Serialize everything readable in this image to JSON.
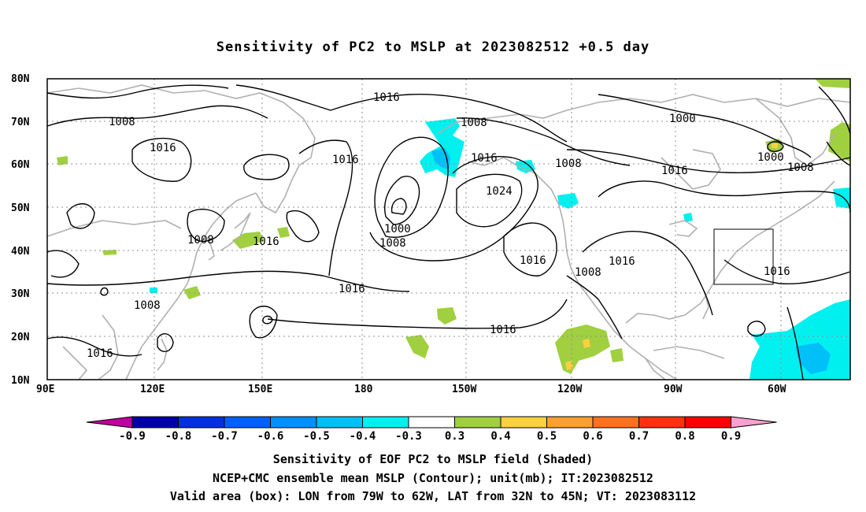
{
  "title": "Sensitivity of PC2 to MSLP at 2023082512 +0.5 day",
  "lat_labels": [
    "80N",
    "70N",
    "60N",
    "50N",
    "40N",
    "30N",
    "20N",
    "10N"
  ],
  "lon_labels": [
    "90E",
    "120E",
    "150E",
    "180",
    "150W",
    "120W",
    "90W",
    "60W"
  ],
  "contour_labels": {
    "c1016_a": "1016",
    "c1008_a": "1008",
    "c1016_b": "1016",
    "c1016_c": "1016",
    "c1008_b": "1008",
    "c1016_d": "1016",
    "c1024": "1024",
    "c1000_a": "1000",
    "c1008_c": "1008",
    "c1016_e": "1016",
    "c1016_f": "1016",
    "c1008_d": "1008",
    "c1016_g": "1016",
    "c1008_e": "1008",
    "c1000_b": "1000",
    "c1000_c": "1000",
    "c1008_f": "1008",
    "c1016_h": "1016",
    "c1016_i": "1016",
    "c1016_j": "1016",
    "c1008_g": "1008",
    "c1008_h": "1008",
    "c1016_k": "1016"
  },
  "colorbar": {
    "labels": [
      "-0.9",
      "-0.8",
      "-0.7",
      "-0.6",
      "-0.5",
      "-0.4",
      "-0.3",
      "0.3",
      "0.4",
      "0.5",
      "0.6",
      "0.7",
      "0.8",
      "0.9"
    ],
    "colors": [
      "#0000a8",
      "#0030e0",
      "#0060ff",
      "#0090ff",
      "#00c0f8",
      "#00f0f0",
      "#ffffff",
      "#a0d040",
      "#ffd040",
      "#ffa030",
      "#ff7020",
      "#ff3010",
      "#ff0000"
    ],
    "left_cap_color": "#c000a0",
    "right_cap_color": "#f8a0d0"
  },
  "captions": {
    "line1": "Sensitivity of EOF PC2 to MSLP field (Shaded)",
    "line2": "NCEP+CMC ensemble mean MSLP (Contour); unit(mb); IT:2023082512",
    "line3": "Valid area (box): LON from 79W to 62W, LAT from 32N to 45N; VT: 2023083112"
  },
  "valid_box": {
    "lon_min": -79,
    "lon_max": -62,
    "lat_min": 32,
    "lat_max": 45
  },
  "colors": {
    "land": "#b0b0b0",
    "contour": "#000000",
    "grid": "#909090",
    "positive_shade": "#a0d040",
    "negative_shade": "#00f0f0"
  }
}
